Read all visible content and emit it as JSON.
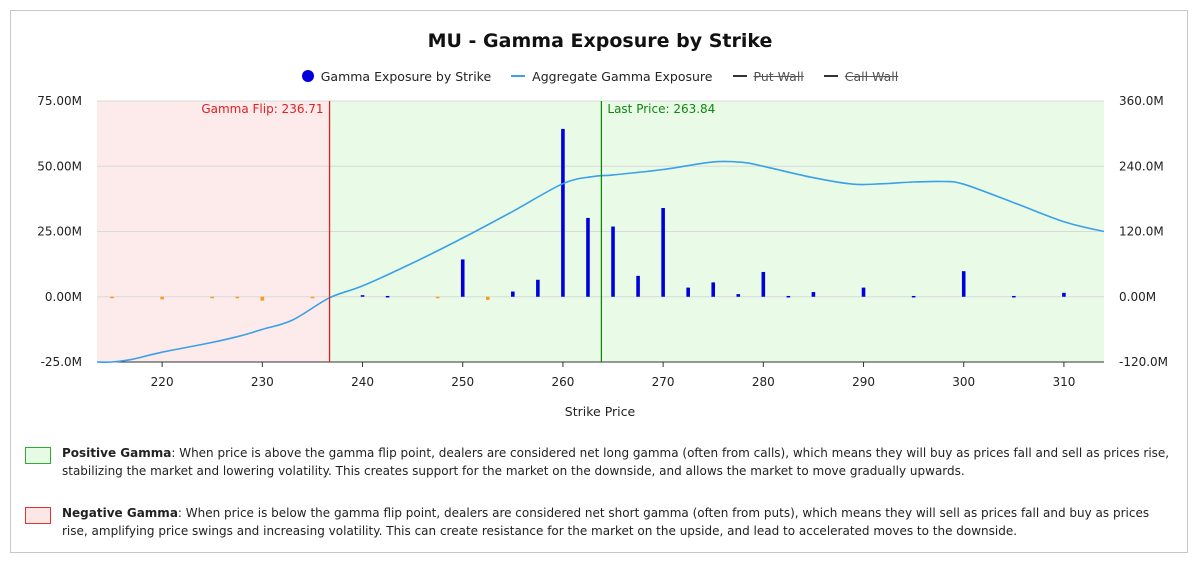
{
  "chart_data": {
    "type": "bar",
    "title": "MU - Gamma Exposure by Strike",
    "xlabel": "Strike Price",
    "ylabel": "",
    "xlim": [
      213.5,
      314
    ],
    "ylim": [
      -25000000,
      75000000
    ],
    "y2lim": [
      -120000000,
      360000000
    ],
    "xticks": [
      220,
      230,
      240,
      250,
      260,
      270,
      280,
      290,
      300,
      310
    ],
    "yticks": [
      "-25.0M",
      "0.00M",
      "25.00M",
      "50.00M",
      "75.00M"
    ],
    "y2ticks": [
      "-120.0M",
      "0.00M",
      "120.0M",
      "240.0M",
      "360.0M"
    ],
    "legend_position": "top-center",
    "grid": true,
    "series": [
      {
        "name": "Gamma Exposure by Strike",
        "kind": "bar",
        "color": "#0000dd",
        "negative_color": "#f0a020",
        "points": [
          [
            215,
            -0.3
          ],
          [
            220,
            -1.0
          ],
          [
            225,
            -0.4
          ],
          [
            227.5,
            -0.3
          ],
          [
            230,
            -1.5
          ],
          [
            235,
            -0.5
          ],
          [
            240,
            0.6
          ],
          [
            242.5,
            0.3
          ],
          [
            247.5,
            -0.3
          ],
          [
            250,
            14.3
          ],
          [
            252.5,
            -1.2
          ],
          [
            255,
            2.0
          ],
          [
            257.5,
            6.5
          ],
          [
            260,
            64.3
          ],
          [
            262.5,
            30.2
          ],
          [
            265,
            26.9
          ],
          [
            267.5,
            8.0
          ],
          [
            270,
            34.0
          ],
          [
            272.5,
            3.5
          ],
          [
            275,
            5.5
          ],
          [
            277.5,
            1.0
          ],
          [
            280,
            9.5
          ],
          [
            282.5,
            0.3
          ],
          [
            285,
            1.8
          ],
          [
            290,
            3.5
          ],
          [
            295,
            0.3
          ],
          [
            300,
            9.8
          ],
          [
            305,
            0.3
          ],
          [
            310,
            1.5
          ]
        ]
      },
      {
        "name": "Aggregate Gamma Exposure",
        "kind": "line",
        "axis": "right",
        "color": "#3aa0e8",
        "points": [
          [
            213.5,
            -120
          ],
          [
            215,
            -120
          ],
          [
            217,
            -115
          ],
          [
            220,
            -102
          ],
          [
            225,
            -84
          ],
          [
            228,
            -71
          ],
          [
            230,
            -60
          ],
          [
            233,
            -43
          ],
          [
            236.7,
            -2
          ],
          [
            240,
            20
          ],
          [
            245,
            62
          ],
          [
            250,
            108
          ],
          [
            255,
            157
          ],
          [
            260,
            208
          ],
          [
            263,
            221
          ],
          [
            265,
            224
          ],
          [
            270,
            234
          ],
          [
            275,
            248
          ],
          [
            278,
            247
          ],
          [
            280,
            240
          ],
          [
            285,
            219
          ],
          [
            289,
            207
          ],
          [
            292,
            208
          ],
          [
            295,
            211
          ],
          [
            298,
            212
          ],
          [
            300,
            207
          ],
          [
            305,
            173
          ],
          [
            310,
            138
          ],
          [
            314,
            120
          ]
        ]
      },
      {
        "name": "Put Wall",
        "kind": "line",
        "color": "#333333",
        "hidden": true
      },
      {
        "name": "Call Wall",
        "kind": "line",
        "color": "#333333",
        "hidden": true
      }
    ],
    "annotations": {
      "gamma_flip": {
        "x": 236.71,
        "label": "Gamma Flip: 236.71",
        "color": "#dd2222"
      },
      "last_price": {
        "x": 263.84,
        "label": "Last Price: 263.84",
        "color": "#118811"
      }
    },
    "regions": {
      "negative_color": "#fdeaea",
      "positive_color": "#e9fbe6"
    }
  },
  "notes": {
    "positive": {
      "term": "Positive Gamma",
      "text": ": When price is above the gamma flip point, dealers are considered net long gamma (often from calls), which means they will buy as prices fall and sell as prices rise, stabilizing the market and lowering volatility. This creates support for the market on the downside, and allows the market to move gradually upwards.",
      "swatch_fill": "#e6fbe3",
      "swatch_border": "#33aa33"
    },
    "negative": {
      "term": "Negative Gamma",
      "text": ": When price is below the gamma flip point, dealers are considered net short gamma (often from puts), which means they will sell as prices fall and buy as prices rise, amplifying price swings and increasing volatility. This can create resistance for the market on the upside, and lead to accelerated moves to the downside.",
      "swatch_fill": "#fde6e6",
      "swatch_border": "#dd3333"
    }
  }
}
